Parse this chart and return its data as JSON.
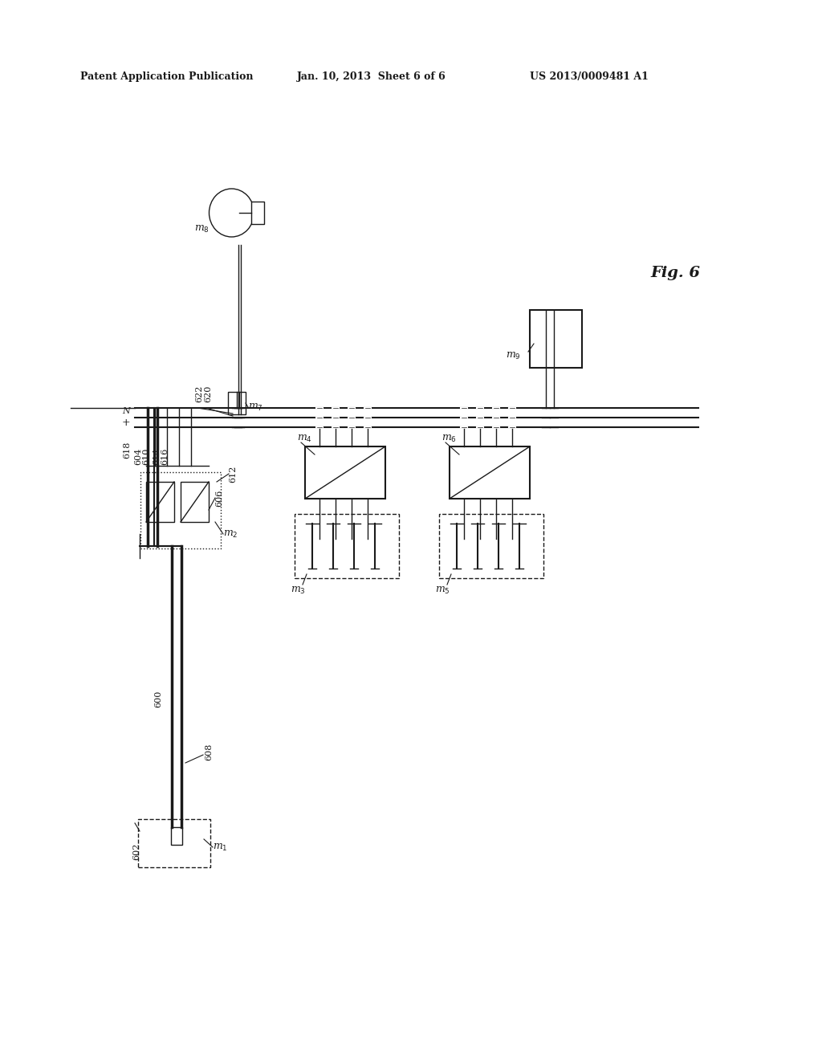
{
  "bg_color": "#ffffff",
  "header_text": "Patent Application Publication",
  "header_date": "Jan. 10, 2013  Sheet 6 of 6",
  "header_patent": "US 2013/0009481 A1",
  "fig_label": "Fig. 6",
  "line_color": "#1a1a1a"
}
